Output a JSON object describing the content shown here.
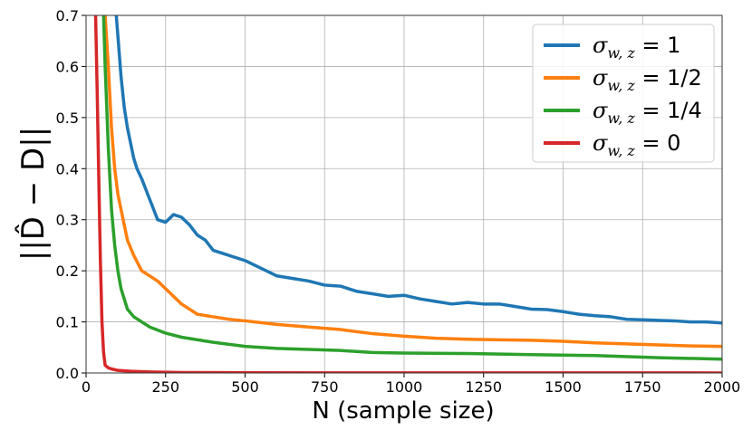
{
  "chart_data": {
    "type": "line",
    "xlabel": "N (sample size)",
    "ylabel": "||D̂ − D||",
    "xlim": [
      0,
      2000
    ],
    "ylim": [
      0,
      0.7
    ],
    "x_ticks": [
      "0",
      "250",
      "500",
      "750",
      "1000",
      "1250",
      "1500",
      "1750",
      "2000"
    ],
    "y_ticks": [
      "0.0",
      "0.1",
      "0.2",
      "0.3",
      "0.4",
      "0.5",
      "0.6",
      "0.7"
    ],
    "grid": true,
    "legend_position": "top-right",
    "series": [
      {
        "name": "σ_{w,z} = 1",
        "label_main": "σ",
        "label_sub": "w, z",
        "label_rhs": " = 1",
        "color": "#1f77b4",
        "x": [
          95,
          100,
          110,
          120,
          130,
          140,
          150,
          160,
          175,
          200,
          225,
          250,
          275,
          300,
          325,
          350,
          375,
          400,
          450,
          500,
          550,
          600,
          650,
          700,
          750,
          800,
          850,
          900,
          950,
          1000,
          1050,
          1100,
          1150,
          1200,
          1250,
          1300,
          1350,
          1400,
          1450,
          1500,
          1550,
          1600,
          1650,
          1700,
          1750,
          1800,
          1850,
          1900,
          1950,
          2000
        ],
        "y": [
          0.7,
          0.66,
          0.58,
          0.52,
          0.48,
          0.45,
          0.42,
          0.4,
          0.38,
          0.34,
          0.3,
          0.295,
          0.31,
          0.305,
          0.29,
          0.27,
          0.26,
          0.24,
          0.23,
          0.22,
          0.205,
          0.19,
          0.185,
          0.18,
          0.172,
          0.17,
          0.16,
          0.155,
          0.15,
          0.152,
          0.145,
          0.14,
          0.135,
          0.138,
          0.135,
          0.135,
          0.13,
          0.125,
          0.124,
          0.12,
          0.115,
          0.112,
          0.11,
          0.105,
          0.104,
          0.103,
          0.102,
          0.1,
          0.1,
          0.098
        ]
      },
      {
        "name": "σ_{w,z} = 1/2",
        "label_main": "σ",
        "label_sub": "w, z",
        "label_rhs": " = 1/2",
        "color": "#ff7f0e",
        "x": [
          60,
          70,
          80,
          90,
          100,
          110,
          120,
          130,
          140,
          150,
          175,
          200,
          225,
          250,
          300,
          350,
          400,
          450,
          500,
          600,
          700,
          800,
          900,
          1000,
          1100,
          1200,
          1300,
          1400,
          1500,
          1600,
          1700,
          1800,
          1900,
          2000
        ],
        "y": [
          0.7,
          0.6,
          0.48,
          0.4,
          0.35,
          0.32,
          0.29,
          0.26,
          0.245,
          0.23,
          0.2,
          0.19,
          0.18,
          0.165,
          0.135,
          0.115,
          0.11,
          0.105,
          0.102,
          0.095,
          0.09,
          0.085,
          0.077,
          0.072,
          0.068,
          0.066,
          0.065,
          0.064,
          0.062,
          0.059,
          0.057,
          0.055,
          0.053,
          0.052
        ]
      },
      {
        "name": "σ_{w,z} = 1/4",
        "label_main": "σ",
        "label_sub": "w, z",
        "label_rhs": " = 1/4",
        "color": "#2ca02c",
        "x": [
          55,
          60,
          70,
          80,
          90,
          100,
          110,
          120,
          130,
          150,
          175,
          200,
          250,
          300,
          400,
          500,
          600,
          700,
          800,
          900,
          1000,
          1200,
          1400,
          1600,
          1800,
          2000
        ],
        "y": [
          0.7,
          0.6,
          0.44,
          0.32,
          0.25,
          0.2,
          0.165,
          0.145,
          0.125,
          0.11,
          0.1,
          0.09,
          0.078,
          0.07,
          0.06,
          0.052,
          0.048,
          0.046,
          0.044,
          0.04,
          0.039,
          0.038,
          0.036,
          0.034,
          0.03,
          0.027
        ]
      },
      {
        "name": "σ_{w,z} = 0",
        "label_main": "σ",
        "label_sub": "w, z",
        "label_rhs": " = 0",
        "color": "#d62728",
        "x": [
          30,
          35,
          40,
          45,
          50,
          55,
          60,
          70,
          80,
          100,
          150,
          200,
          300,
          500,
          1000,
          2000
        ],
        "y": [
          0.7,
          0.55,
          0.38,
          0.22,
          0.1,
          0.04,
          0.015,
          0.01,
          0.008,
          0.005,
          0.003,
          0.002,
          0.001,
          0.0005,
          0.0002,
          0.0001
        ]
      }
    ]
  }
}
